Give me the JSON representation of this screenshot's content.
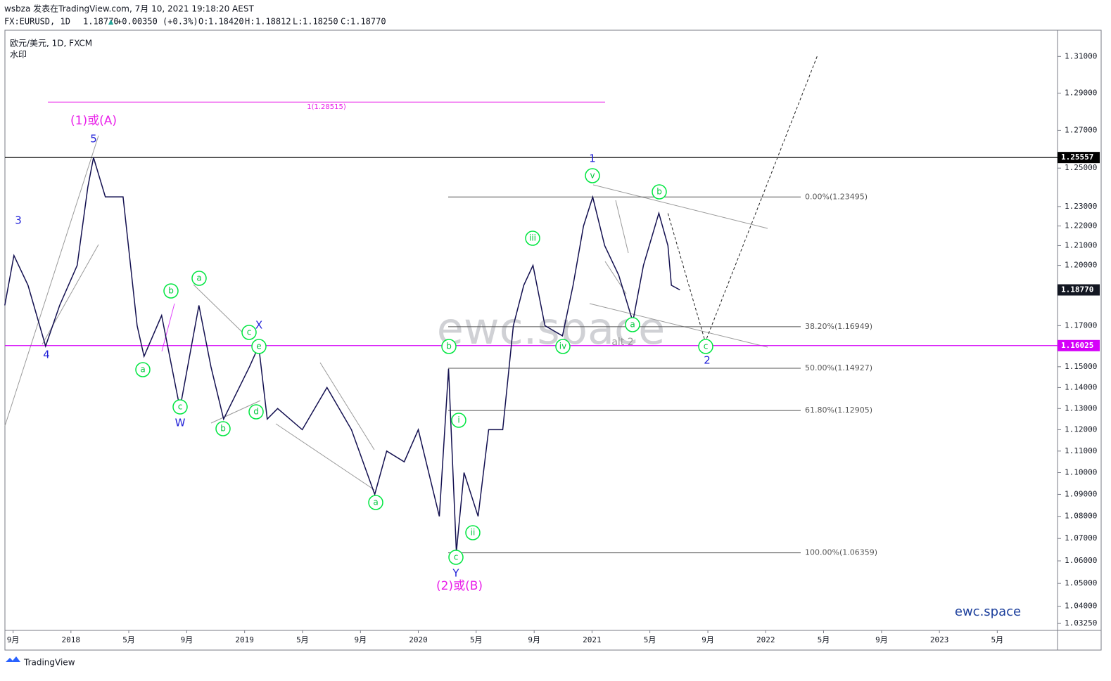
{
  "header": {
    "title": "wsbza 发表在TradingView.com, 7月 10, 2021 19:18:20 AEST",
    "symbol": "FX:EURUSD, 1D",
    "last": "1.18770",
    "arrow": "▲",
    "change": "+0.00350 (+0.3%)",
    "o_label": "O:",
    "o": "1.18420",
    "h_label": "H:",
    "h": "1.18812",
    "l_label": "L:",
    "l": "1.18250",
    "c_label": "C:",
    "c": "1.18770",
    "legend": "欧元/美元, 1D, FXCM",
    "legend2": "水印",
    "watermark": "ewc.space",
    "brand": "ewc.space",
    "footer": "TradingView"
  },
  "chart_data": {
    "type": "line",
    "log_scale": true,
    "color": "#131050",
    "x": [
      2017.619,
      2017.672,
      2017.753,
      2017.854,
      2017.935,
      2018.036,
      2018.097,
      2018.13,
      2018.198,
      2018.3,
      2018.381,
      2018.421,
      2018.522,
      2018.628,
      2018.737,
      2018.806,
      2018.879,
      2019.028,
      2019.081,
      2019.13,
      2019.19,
      2019.332,
      2019.474,
      2019.615,
      2019.749,
      2019.818,
      2019.919,
      2020.0,
      2020.121,
      2020.174,
      2020.219,
      2020.263,
      2020.344,
      2020.405,
      2020.486,
      2020.547,
      2020.607,
      2020.66,
      2020.729,
      2020.83,
      2020.891,
      2020.951,
      2021.004,
      2021.073,
      2021.154,
      2021.235,
      2021.296,
      2021.385,
      2021.437,
      2021.457,
      2021.506
    ],
    "values": [
      1.18,
      1.205,
      1.19,
      1.16,
      1.18,
      1.2,
      1.24,
      1.2556,
      1.235,
      1.235,
      1.17,
      1.155,
      1.175,
      1.13,
      1.18,
      1.15,
      1.125,
      1.15,
      1.16,
      1.125,
      1.13,
      1.12,
      1.14,
      1.12,
      1.09,
      1.11,
      1.105,
      1.12,
      1.08,
      1.149,
      1.064,
      1.1,
      1.08,
      1.12,
      1.12,
      1.17,
      1.19,
      1.2,
      1.17,
      1.165,
      1.19,
      1.22,
      1.2349,
      1.21,
      1.195,
      1.172,
      1.2,
      1.2266,
      1.21,
      1.19,
      1.1877
    ],
    "projection": {
      "x": [
        2021.437,
        2021.652,
        2022.3
      ],
      "values": [
        1.2265,
        1.162,
        1.311
      ]
    },
    "xlim": [
      2017.62,
      2023.68
    ],
    "ylim": [
      1.0295,
      1.3245
    ],
    "xticks": [
      {
        "value": 2017.667,
        "label": "9月"
      },
      {
        "value": 2018,
        "label": "2018"
      },
      {
        "value": 2018.333,
        "label": "5月"
      },
      {
        "value": 2018.667,
        "label": "9月"
      },
      {
        "value": 2019,
        "label": "2019"
      },
      {
        "value": 2019.333,
        "label": "5月"
      },
      {
        "value": 2019.667,
        "label": "9月"
      },
      {
        "value": 2020,
        "label": "2020"
      },
      {
        "value": 2020.333,
        "label": "5月"
      },
      {
        "value": 2020.667,
        "label": "9月"
      },
      {
        "value": 2021,
        "label": "2021"
      },
      {
        "value": 2021.333,
        "label": "5月"
      },
      {
        "value": 2021.667,
        "label": "9月"
      },
      {
        "value": 2022,
        "label": "2022"
      },
      {
        "value": 2022.333,
        "label": "5月"
      },
      {
        "value": 2022.667,
        "label": "9月"
      },
      {
        "value": 2023,
        "label": "2023"
      },
      {
        "value": 2023.333,
        "label": "5月"
      }
    ],
    "yticks": [
      {
        "value": 1.31,
        "label": "1.31000"
      },
      {
        "value": 1.29,
        "label": "1.29000"
      },
      {
        "value": 1.27,
        "label": "1.27000"
      },
      {
        "value": 1.25,
        "label": "1.25000"
      },
      {
        "value": 1.23,
        "label": "1.23000"
      },
      {
        "value": 1.22,
        "label": "1.22000"
      },
      {
        "value": 1.21,
        "label": "1.21000"
      },
      {
        "value": 1.2,
        "label": "1.20000"
      },
      {
        "value": 1.17,
        "label": "1.17000"
      },
      {
        "value": 1.15,
        "label": "1.15000"
      },
      {
        "value": 1.14,
        "label": "1.14000"
      },
      {
        "value": 1.13,
        "label": "1.13000"
      },
      {
        "value": 1.12,
        "label": "1.12000"
      },
      {
        "value": 1.11,
        "label": "1.11000"
      },
      {
        "value": 1.1,
        "label": "1.10000"
      },
      {
        "value": 1.09,
        "label": "1.09000"
      },
      {
        "value": 1.08,
        "label": "1.08000"
      },
      {
        "value": 1.07,
        "label": "1.07000"
      },
      {
        "value": 1.06,
        "label": "1.06000"
      },
      {
        "value": 1.05,
        "label": "1.05000"
      },
      {
        "value": 1.04,
        "label": "1.04000"
      },
      {
        "value": 1.0325,
        "label": "1.03250"
      }
    ],
    "price_lines": [
      {
        "value": 1.25557,
        "color": "#000000"
      },
      {
        "value": 1.16025,
        "color": "#d500f9"
      }
    ],
    "last_price": {
      "value": 1.1877,
      "label": "1.18770",
      "color": "#131722"
    },
    "target": {
      "value": 1.28515,
      "label": "1(1.28515)",
      "color": "#e91ee9"
    },
    "fib_levels": [
      {
        "value": 1.23495,
        "label": "0.00%(1.23495)"
      },
      {
        "value": 1.16949,
        "label": "38.20%(1.16949)"
      },
      {
        "value": 1.14927,
        "label": "50.00%(1.14927)"
      },
      {
        "value": 1.12905,
        "label": "61.80%(1.12905)"
      },
      {
        "value": 1.06359,
        "label": "100.00%(1.06359)"
      }
    ],
    "wave_labels": [
      "(1)或(A)",
      "5",
      "3",
      "4",
      "a",
      "b",
      "c",
      "W",
      "a",
      "b",
      "c",
      "X",
      "e",
      "d",
      "a",
      "b",
      "i",
      "ii",
      "c",
      "Y",
      "(2)或(B)",
      "iii",
      "iv",
      "v",
      "1",
      "a",
      "b",
      "c",
      "2",
      "alt 2"
    ]
  }
}
